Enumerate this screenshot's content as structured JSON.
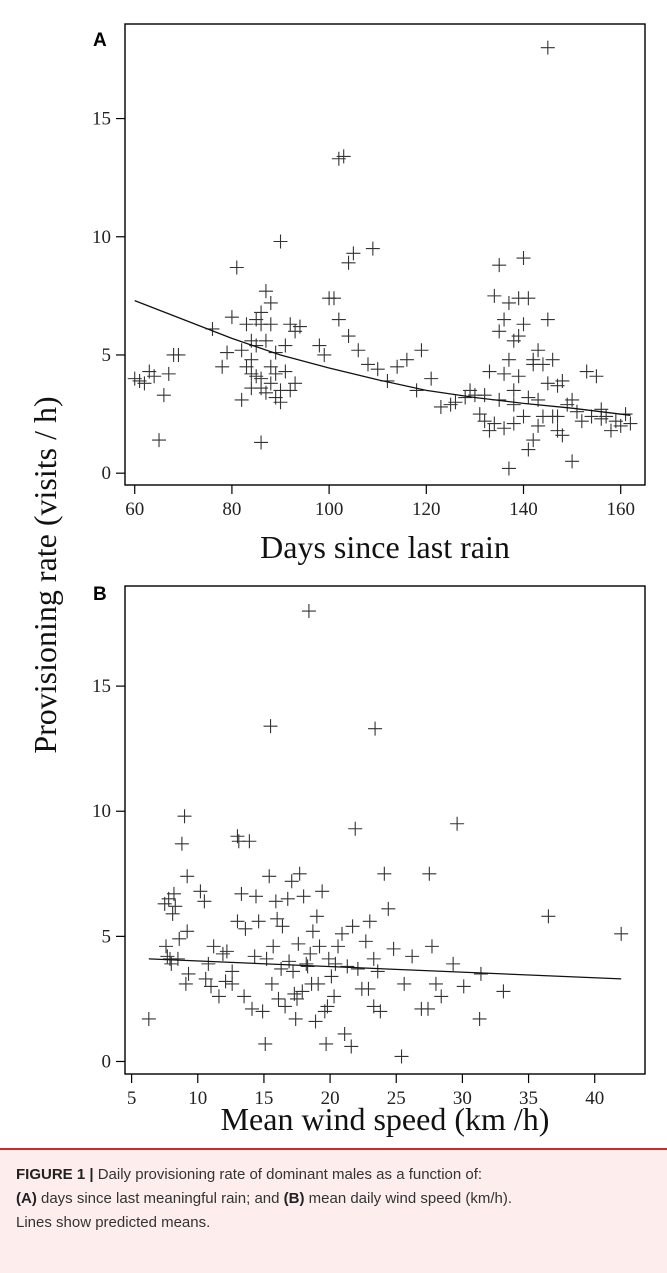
{
  "figure": {
    "ylabel": "Provisioning rate (visits / h)",
    "caption": {
      "label": "FIGURE 1 |",
      "line1": " Daily provisioning rate of dominant males as a function of:",
      "a_tag": "(A)",
      "a_text": " days since last meaningful rain; and ",
      "b_tag": "(B)",
      "b_text": " mean daily wind speed (km/h).",
      "line3": "Lines show predicted means."
    }
  },
  "chart_data": [
    {
      "panel": "A",
      "type": "scatter",
      "xlabel": "Days since last rain",
      "ylabel": "Provisioning rate (visits / h)",
      "xlim": [
        58,
        165
      ],
      "ylim": [
        -0.5,
        19
      ],
      "xticks": [
        60,
        80,
        100,
        120,
        140,
        160
      ],
      "yticks": [
        0,
        5,
        10,
        15
      ],
      "grid": false,
      "series": [
        {
          "kind": "points",
          "x": [
            60,
            61,
            62,
            63,
            64,
            65,
            66,
            67,
            68,
            69,
            76,
            78,
            79,
            80,
            81,
            82,
            82,
            83,
            83,
            84,
            84,
            84,
            85,
            85,
            85,
            86,
            86,
            86,
            86,
            87,
            87,
            87,
            88,
            88,
            88,
            89,
            89,
            89,
            90,
            90,
            90,
            91,
            91,
            92,
            92,
            93,
            93,
            94,
            98,
            99,
            100,
            101,
            102,
            102,
            103,
            104,
            104,
            105,
            106,
            108,
            109,
            110,
            112,
            114,
            116,
            118,
            119,
            121,
            123,
            125,
            126,
            128,
            129,
            130,
            131,
            132,
            132,
            133,
            134,
            134,
            135,
            135,
            135,
            136,
            136,
            136,
            137,
            137,
            137,
            138,
            138,
            138,
            139,
            139,
            139,
            140,
            140,
            140,
            141,
            141,
            141,
            142,
            142,
            143,
            143,
            143,
            144,
            144,
            145,
            145,
            145,
            146,
            146,
            147,
            147,
            148,
            148,
            149,
            150,
            150,
            151,
            152,
            153,
            154,
            155,
            156,
            157,
            158,
            159,
            160,
            161,
            162,
            84,
            86,
            88,
            133,
            138,
            142,
            147,
            156
          ],
          "y": [
            4,
            3.9,
            3.8,
            4.3,
            4.1,
            1.4,
            3.3,
            4.2,
            5,
            5,
            6.1,
            4.5,
            5.1,
            6.6,
            8.7,
            5.2,
            3.1,
            4.5,
            6.3,
            5.6,
            4.2,
            3.6,
            6.5,
            5.4,
            4.1,
            6.8,
            4,
            3.6,
            1.3,
            7.7,
            5.6,
            3.4,
            6.3,
            4.5,
            3.8,
            3.2,
            4.2,
            5.1,
            9.8,
            3.5,
            3,
            4.3,
            5.4,
            3.5,
            6.3,
            6,
            3.8,
            6.2,
            5.4,
            5,
            7.4,
            7.4,
            13.3,
            6.5,
            13.4,
            8.9,
            5.8,
            9.3,
            5.2,
            4.6,
            9.5,
            4.4,
            3.9,
            4.5,
            4.8,
            3.5,
            5.2,
            4,
            2.8,
            2.9,
            3,
            3.2,
            3.5,
            3.3,
            2.5,
            2.2,
            3.3,
            1.8,
            7.5,
            2.1,
            8.8,
            6,
            3.1,
            6.5,
            4.2,
            1.9,
            0.2,
            4.8,
            7.2,
            5.6,
            2.9,
            2.1,
            7.4,
            5.8,
            4.1,
            9.1,
            6.3,
            2.4,
            7.4,
            1,
            3.2,
            4.8,
            1.4,
            5.2,
            3.1,
            2,
            4.6,
            2.4,
            18,
            3.8,
            6.5,
            2.4,
            4.8,
            2.4,
            3.7,
            1.6,
            3.9,
            2.9,
            0.5,
            3.1,
            2.6,
            2.2,
            4.3,
            2.4,
            4.1,
            2.7,
            2.4,
            1.8,
            2.2,
            2,
            2.5,
            2.1,
            4.8,
            6.3,
            7.2,
            4.3,
            3.5,
            4.6,
            1.8,
            2.3
          ]
        },
        {
          "kind": "line",
          "name": "",
          "x": [
            60,
            70,
            80,
            90,
            100,
            110,
            120,
            130,
            140,
            150,
            162
          ],
          "y": [
            7.3,
            6.5,
            5.7,
            5.0,
            4.45,
            3.95,
            3.5,
            3.2,
            2.95,
            2.75,
            2.45
          ]
        }
      ]
    },
    {
      "panel": "B",
      "type": "scatter",
      "xlabel": "Mean wind speed (km /h)",
      "ylabel": "Provisioning rate (visits / h)",
      "xlim": [
        4.5,
        43.8
      ],
      "ylim": [
        -0.5,
        19
      ],
      "xticks": [
        5,
        10,
        15,
        20,
        25,
        30,
        35,
        40
      ],
      "yticks": [
        0,
        5,
        10,
        15
      ],
      "grid": false,
      "series": [
        {
          "kind": "points",
          "x": [
            6.3,
            7.5,
            7.6,
            7.8,
            7.9,
            8.1,
            8.2,
            8.3,
            8.5,
            8.8,
            9.0,
            9.1,
            9.2,
            9.3,
            10.5,
            10.6,
            10.8,
            11.2,
            11.6,
            11.9,
            12.1,
            12.2,
            12.6,
            13.0,
            13.1,
            13.3,
            13.5,
            13.6,
            13.9,
            14.1,
            14.3,
            14.6,
            14.9,
            15.1,
            15.4,
            15.5,
            15.6,
            15.7,
            15.9,
            16.1,
            16.3,
            16.4,
            16.6,
            16.8,
            17.1,
            17.2,
            17.4,
            17.6,
            17.7,
            17.9,
            18.0,
            18.2,
            18.3,
            18.4,
            18.5,
            18.7,
            18.9,
            19.1,
            19.2,
            19.4,
            19.6,
            19.7,
            19.9,
            20.1,
            20.3,
            20.6,
            20.9,
            21.1,
            21.3,
            21.6,
            21.9,
            22.1,
            22.4,
            22.7,
            23.0,
            23.3,
            23.4,
            23.6,
            23.8,
            24.1,
            24.4,
            24.8,
            25.4,
            25.6,
            26.2,
            26.9,
            27.5,
            27.7,
            28.0,
            28.4,
            29.3,
            29.6,
            30.1,
            31.3,
            31.4,
            33.1,
            36.5,
            42.0,
            8.0,
            9.2,
            12.6,
            16.9,
            17.5,
            19.0,
            20.4,
            21.7,
            22.9,
            15.2,
            14.4,
            13.0,
            11.0,
            27.4,
            23.3,
            19.8,
            18.6,
            17.3,
            16.0,
            10.2,
            8.6,
            7.7
          ],
          "y": [
            1.7,
            6.3,
            4.6,
            6.5,
            4.1,
            5.9,
            6.7,
            6.2,
            4.1,
            8.7,
            9.8,
            3.1,
            7.4,
            3.5,
            6.4,
            3.3,
            3.9,
            4.6,
            2.6,
            4.3,
            3.2,
            4.4,
            3.1,
            9,
            8.8,
            6.7,
            2.6,
            5.3,
            8.8,
            2.1,
            4.2,
            5.6,
            2,
            0.7,
            7.4,
            13.4,
            3.1,
            4.6,
            6.4,
            2.5,
            3.7,
            5.4,
            2.2,
            6.5,
            7.2,
            3.6,
            1.7,
            4.7,
            7.5,
            2.8,
            6.6,
            3.9,
            3.8,
            18,
            4.3,
            5.2,
            1.6,
            3.1,
            4.6,
            6.8,
            2,
            0.7,
            4.1,
            3.4,
            2.6,
            4.6,
            5.1,
            1.1,
            3.8,
            0.6,
            9.3,
            3.7,
            2.9,
            4.8,
            5.6,
            2.2,
            13.3,
            3.6,
            2,
            7.5,
            6.1,
            4.5,
            0.2,
            3.1,
            4.2,
            2.1,
            7.5,
            4.6,
            3.1,
            2.6,
            3.9,
            9.5,
            3,
            1.7,
            3.5,
            2.8,
            5.8,
            5.1,
            3.9,
            5.2,
            3.6,
            4.0,
            2.5,
            5.8,
            3.9,
            5.4,
            2.9,
            4.1,
            6.6,
            5.6,
            3.0,
            2.1,
            4.1,
            2.2,
            3.1,
            2.7,
            5.7,
            6.8,
            4.9,
            4.2
          ]
        },
        {
          "kind": "line",
          "name": "",
          "x": [
            6.3,
            42.0
          ],
          "y": [
            4.1,
            3.3
          ]
        }
      ]
    }
  ]
}
